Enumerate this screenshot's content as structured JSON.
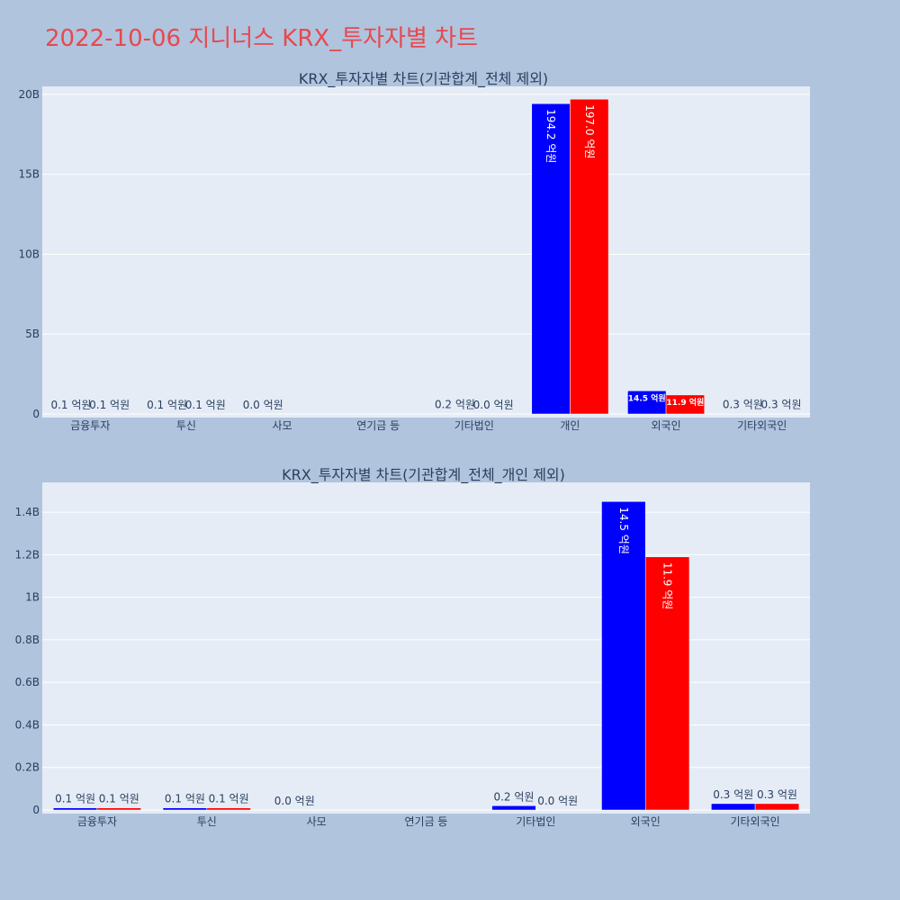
{
  "page": {
    "title": "2022-10-06 지니너스 KRX_투자자별 차트"
  },
  "colors": {
    "background": "#b0c4de",
    "plot_bg": "#e5ecf6",
    "title": "#e8484f",
    "series_a": "#0000ff",
    "series_b": "#ff0000"
  },
  "chart_data": [
    {
      "type": "bar",
      "title": "KRX_투자자별 차트(기관합계_전체 제외)",
      "categories": [
        "금융투자",
        "투신",
        "사모",
        "연기금 등",
        "기타법인",
        "개인",
        "외국인",
        "기타외국인"
      ],
      "series": [
        {
          "color": "#0000ff",
          "values": [
            10000000,
            10000000,
            0,
            0,
            20000000,
            19420000000,
            1450000000,
            30000000
          ],
          "labels": [
            "0.1 억원",
            "0.1 억원",
            "0.0 억원",
            "",
            "0.2 억원",
            "194.2 억원",
            "14.5 억원",
            "0.3 억원"
          ]
        },
        {
          "color": "#ff0000",
          "values": [
            10000000,
            10000000,
            0,
            0,
            0,
            19700000000,
            1190000000,
            30000000
          ],
          "labels": [
            "0.1 억원",
            "0.1 억원",
            "",
            "",
            "0.0 억원",
            "197.0 억원",
            "11.9 억원",
            "0.3 억원"
          ]
        }
      ],
      "ylim": [
        0,
        20500000000
      ],
      "yticks": [
        0,
        5000000000,
        10000000000,
        15000000000,
        20000000000
      ],
      "ytick_labels": [
        "0",
        "5B",
        "10B",
        "15B",
        "20B"
      ],
      "grid": true,
      "legend": "none"
    },
    {
      "type": "bar",
      "title": "KRX_투자자별 차트(기관합계_전체_개인 제외)",
      "categories": [
        "금융투자",
        "투신",
        "사모",
        "연기금 등",
        "기타법인",
        "외국인",
        "기타외국인"
      ],
      "series": [
        {
          "color": "#0000ff",
          "values": [
            10000000,
            10000000,
            0,
            0,
            20000000,
            1450000000,
            30000000
          ],
          "labels": [
            "0.1 억원",
            "0.1 억원",
            "0.0 억원",
            "",
            "0.2 억원",
            "14.5 억원",
            "0.3 억원"
          ]
        },
        {
          "color": "#ff0000",
          "values": [
            10000000,
            10000000,
            0,
            0,
            0,
            1190000000,
            30000000
          ],
          "labels": [
            "0.1 억원",
            "0.1 억원",
            "",
            "",
            "0.0 억원",
            "11.9 억원",
            "0.3 억원"
          ]
        }
      ],
      "ylim": [
        0,
        1540000000
      ],
      "yticks": [
        0,
        200000000,
        400000000,
        600000000,
        800000000,
        1000000000,
        1200000000,
        1400000000
      ],
      "ytick_labels": [
        "0",
        "0.2B",
        "0.4B",
        "0.6B",
        "0.8B",
        "1B",
        "1.2B",
        "1.4B"
      ],
      "grid": true,
      "legend": "none"
    }
  ]
}
